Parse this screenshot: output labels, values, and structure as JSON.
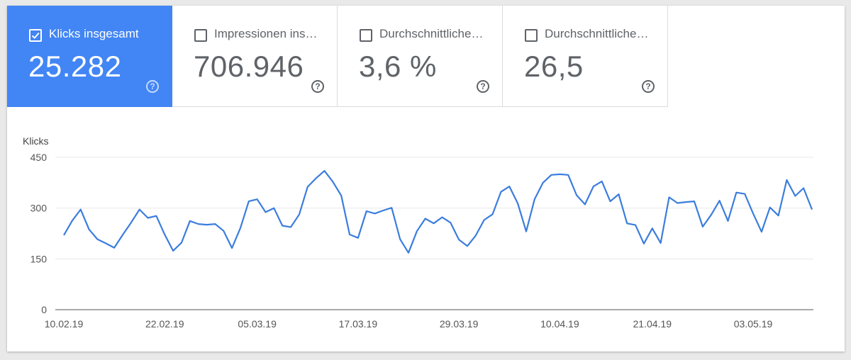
{
  "metrics": [
    {
      "label": "Klicks insgesamt",
      "value": "25.282",
      "checked": true
    },
    {
      "label": "Impressionen ins…",
      "value": "706.946",
      "checked": false
    },
    {
      "label": "Durchschnittliche…",
      "value": "3,6 %",
      "checked": false
    },
    {
      "label": "Durchschnittliche…",
      "value": "26,5",
      "checked": false
    }
  ],
  "help_glyph": "?",
  "colors": {
    "accent": "#4285f4",
    "line": "#3b7ddd",
    "grid": "#e8e8e8",
    "text": "#5f6368"
  },
  "chart_data": {
    "type": "line",
    "ylabel": "Klicks",
    "ylim": [
      0,
      450
    ],
    "yticks": [
      0,
      150,
      300,
      450
    ],
    "xtick_labels": [
      "10.02.19",
      "22.02.19",
      "05.03.19",
      "17.03.19",
      "29.03.19",
      "10.04.19",
      "21.04.19",
      "03.05.19"
    ],
    "xtick_index": [
      0,
      12,
      23,
      35,
      47,
      59,
      70,
      82
    ],
    "grid": true,
    "series": [
      {
        "values": [
          220,
          263,
          296,
          237,
          208,
          196,
          183,
          221,
          257,
          296,
          271,
          277,
          222,
          174,
          198,
          262,
          253,
          251,
          253,
          233,
          182,
          241,
          320,
          326,
          288,
          300,
          248,
          244,
          281,
          363,
          388,
          410,
          378,
          337,
          222,
          212,
          291,
          284,
          293,
          301,
          208,
          168,
          232,
          269,
          255,
          273,
          257,
          207,
          188,
          219,
          265,
          282,
          348,
          364,
          314,
          231,
          326,
          375,
          398,
          400,
          398,
          338,
          311,
          364,
          379,
          320,
          341,
          255,
          250,
          195,
          240,
          197,
          332,
          315,
          318,
          320,
          245,
          280,
          322,
          262,
          346,
          342,
          284,
          230,
          302,
          278,
          383,
          336,
          359,
          296
        ]
      }
    ]
  }
}
